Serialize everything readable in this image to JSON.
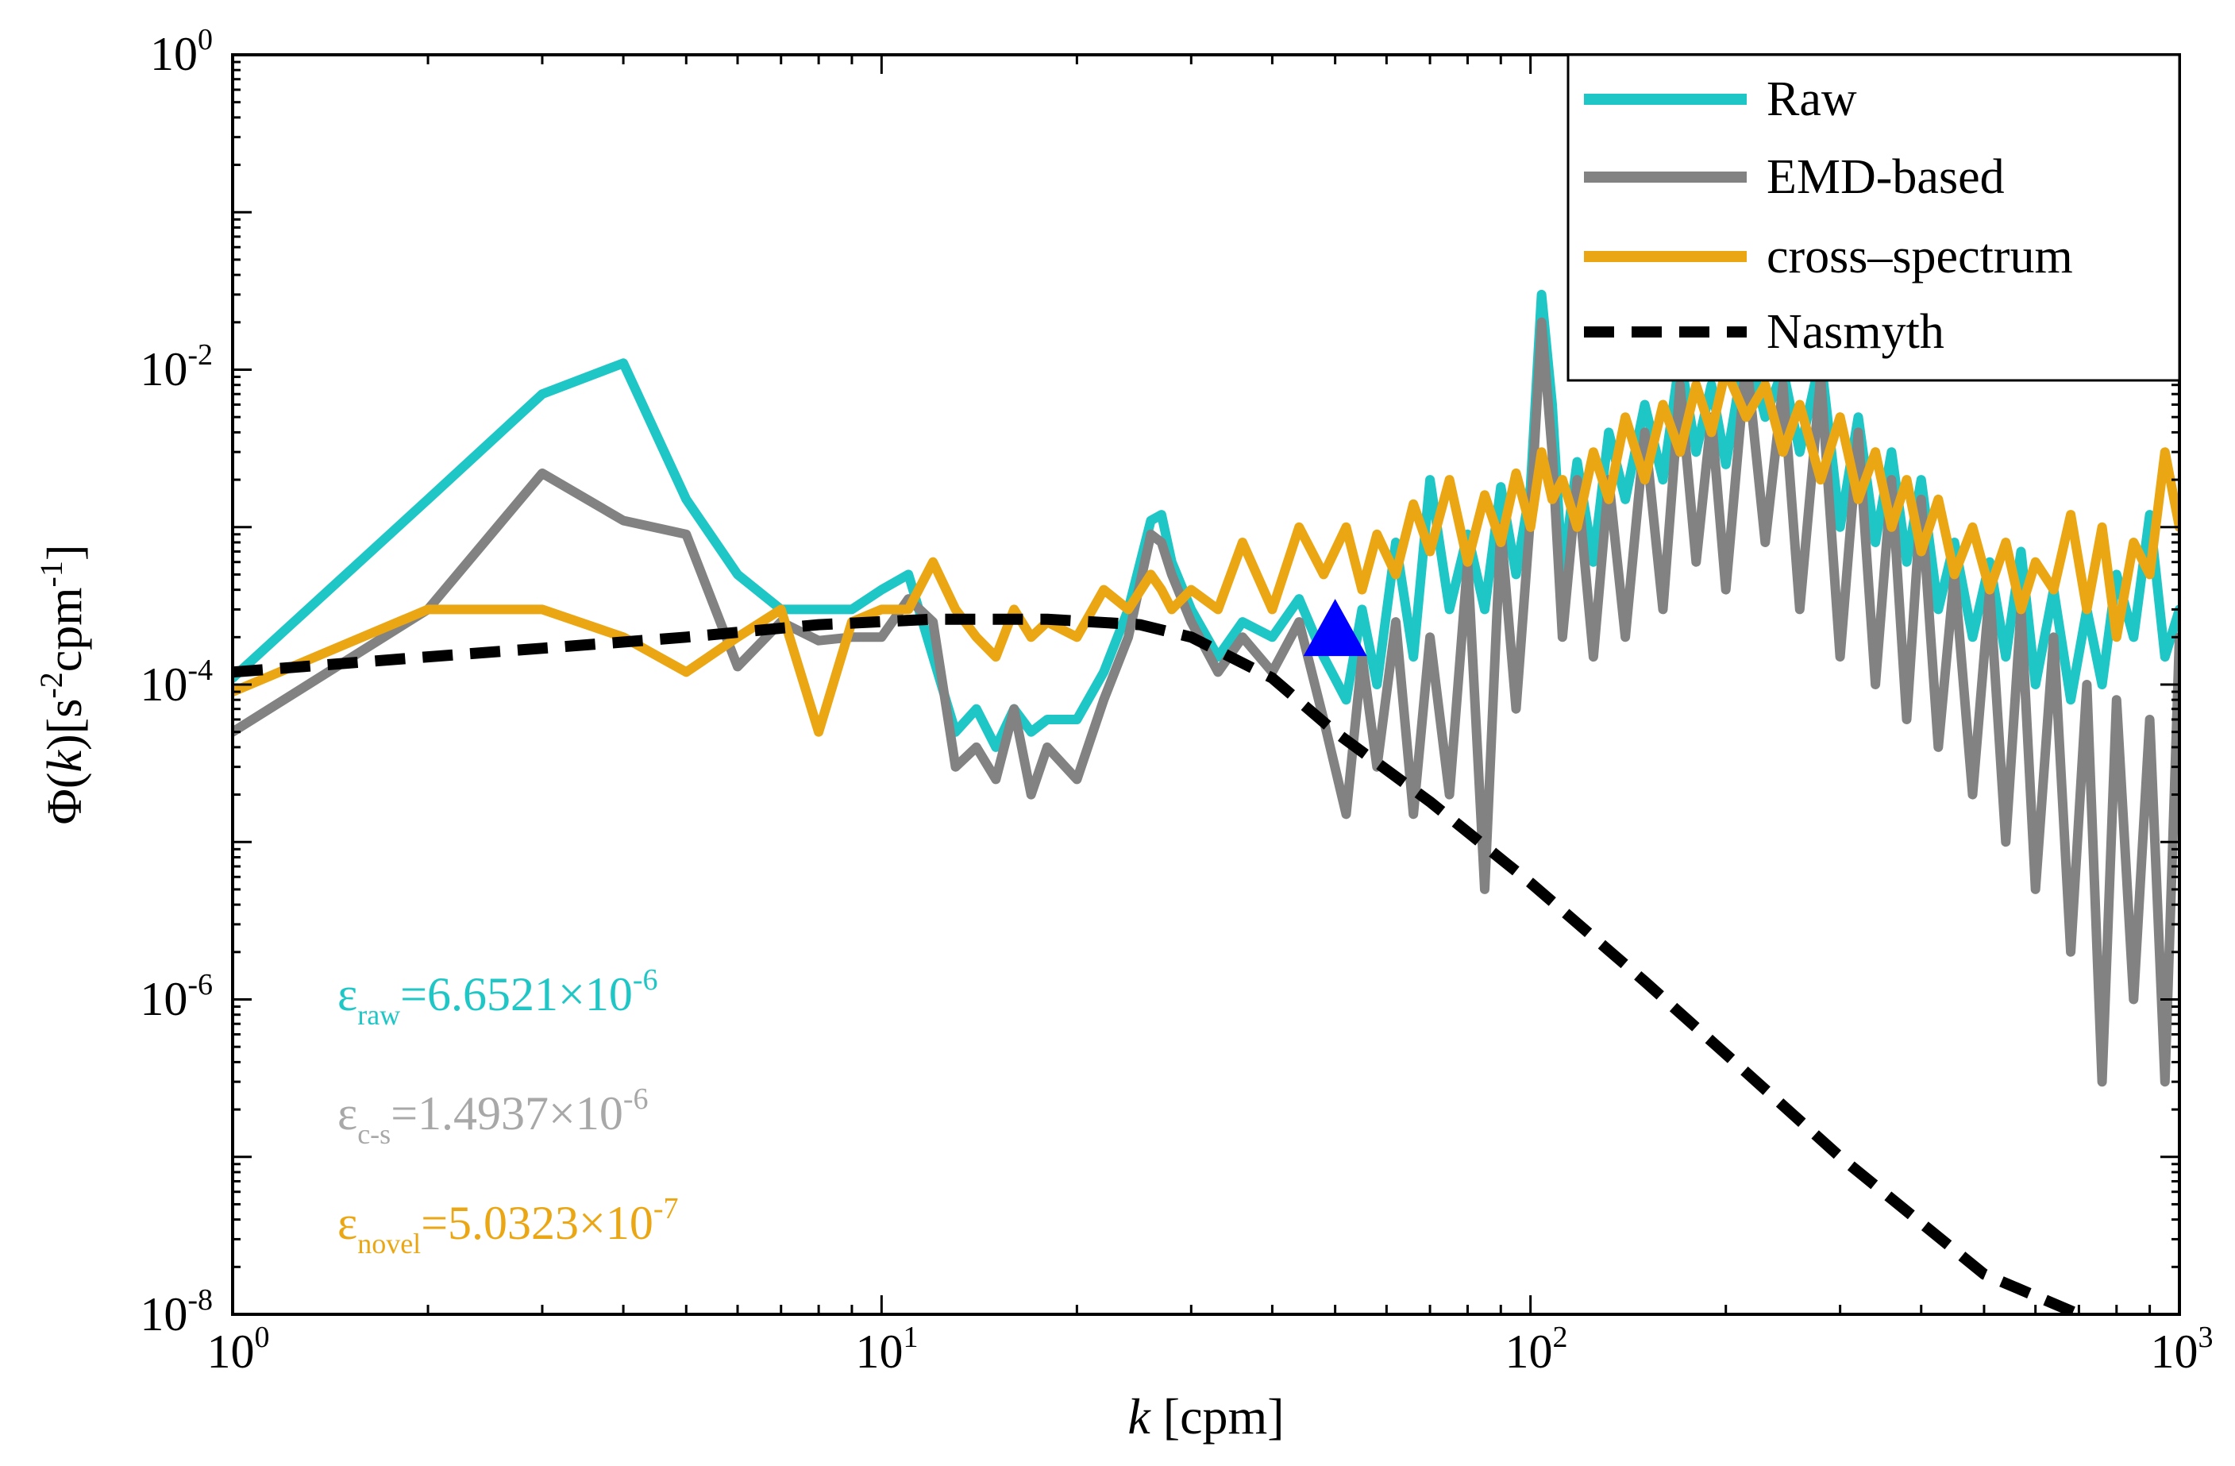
{
  "chart_data": {
    "type": "line",
    "xscale": "log",
    "yscale": "log",
    "xlim": [
      1,
      1000
    ],
    "ylim": [
      1e-08,
      1
    ],
    "grid": false,
    "legend_position": "top-right",
    "xlabel": {
      "var": "k",
      "rest": " [cpm]"
    },
    "ylabel": {
      "phi": "Φ(",
      "var": "k",
      "mid": ")[s",
      "sup1": "-2",
      "cpm": "cpm",
      "sup2": "-1",
      "end": "]"
    },
    "xticks": [
      {
        "value": 1,
        "base": "10",
        "exp": "0"
      },
      {
        "value": 10,
        "base": "10",
        "exp": "1"
      },
      {
        "value": 100,
        "base": "10",
        "exp": "2"
      },
      {
        "value": 1000,
        "base": "10",
        "exp": "3"
      }
    ],
    "yticks": [
      {
        "value": 1e-08,
        "base": "10",
        "exp": "-8"
      },
      {
        "value": 1e-06,
        "base": "10",
        "exp": "-6"
      },
      {
        "value": 0.0001,
        "base": "10",
        "exp": "-4"
      },
      {
        "value": 0.01,
        "base": "10",
        "exp": "-2"
      },
      {
        "value": 1,
        "base": "10",
        "exp": "0"
      }
    ],
    "series": [
      {
        "name": "Raw",
        "color": "#1fc6c6",
        "style": "solid",
        "x": [
          1,
          2,
          3,
          4,
          5,
          6,
          7,
          8,
          9,
          10,
          11,
          12,
          13,
          14,
          15,
          16,
          17,
          18,
          20,
          22,
          24,
          26,
          27,
          28,
          30,
          33,
          36,
          40,
          44,
          48,
          52,
          55,
          58,
          62,
          66,
          70,
          75,
          80,
          85,
          90,
          95,
          100,
          104,
          108,
          112,
          118,
          125,
          132,
          140,
          150,
          160,
          170,
          180,
          190,
          200,
          215,
          230,
          245,
          260,
          280,
          300,
          320,
          340,
          360,
          380,
          400,
          425,
          450,
          480,
          510,
          540,
          570,
          600,
          640,
          680,
          720,
          760,
          800,
          850,
          900,
          950,
          1000
        ],
        "y": [
          0.00011,
          0.0015,
          0.007,
          0.011,
          0.0015,
          0.0005,
          0.0003,
          0.0003,
          0.0003,
          0.0004,
          0.0005,
          0.00015,
          5e-05,
          7e-05,
          4e-05,
          7e-05,
          5e-05,
          6e-05,
          6e-05,
          0.00012,
          0.0003,
          0.0011,
          0.0012,
          0.0006,
          0.0003,
          0.00015,
          0.00025,
          0.0002,
          0.00035,
          0.00015,
          8e-05,
          0.0003,
          0.0001,
          0.0008,
          0.00015,
          0.002,
          0.0003,
          0.0009,
          0.0003,
          0.0018,
          0.0005,
          0.0018,
          0.03,
          0.006,
          0.0005,
          0.0026,
          0.0006,
          0.004,
          0.0015,
          0.006,
          0.002,
          0.012,
          0.003,
          0.008,
          0.0025,
          0.015,
          0.005,
          0.01,
          0.003,
          0.012,
          0.001,
          0.005,
          0.0008,
          0.003,
          0.0006,
          0.002,
          0.0003,
          0.0008,
          0.0002,
          0.0006,
          0.00015,
          0.0007,
          0.0001,
          0.0004,
          8e-05,
          0.0003,
          0.0001,
          0.0005,
          0.0002,
          0.0012,
          0.00015,
          0.0003
        ]
      },
      {
        "name": "EMD-based",
        "color": "#828282",
        "style": "solid",
        "x": [
          1,
          2,
          3,
          4,
          5,
          6,
          7,
          8,
          9,
          10,
          11,
          12,
          13,
          14,
          15,
          16,
          17,
          18,
          20,
          22,
          24,
          26,
          27,
          28,
          30,
          33,
          36,
          40,
          44,
          48,
          52,
          55,
          58,
          62,
          66,
          70,
          75,
          80,
          85,
          90,
          95,
          100,
          104,
          108,
          112,
          118,
          125,
          132,
          140,
          150,
          160,
          170,
          180,
          190,
          200,
          215,
          230,
          245,
          260,
          280,
          300,
          320,
          340,
          360,
          380,
          400,
          425,
          450,
          480,
          510,
          540,
          570,
          600,
          640,
          680,
          720,
          760,
          800,
          850,
          900,
          950,
          1000
        ],
        "y": [
          5e-05,
          0.0003,
          0.0022,
          0.0011,
          0.0009,
          0.00013,
          0.00025,
          0.00019,
          0.0002,
          0.0002,
          0.00035,
          0.00025,
          3e-05,
          4e-05,
          2.5e-05,
          7e-05,
          2e-05,
          4e-05,
          2.5e-05,
          8e-05,
          0.0002,
          0.0009,
          0.0008,
          0.0005,
          0.00025,
          0.00012,
          0.0002,
          0.00012,
          0.00025,
          6e-05,
          1.5e-05,
          0.00015,
          3e-05,
          0.00025,
          1.5e-05,
          0.0002,
          2e-05,
          0.0006,
          5e-06,
          0.001,
          7e-05,
          0.0012,
          0.02,
          0.003,
          0.0002,
          0.002,
          0.00015,
          0.002,
          0.0002,
          0.004,
          0.0003,
          0.008,
          0.0006,
          0.005,
          0.0004,
          0.012,
          0.0008,
          0.008,
          0.0003,
          0.009,
          0.00015,
          0.004,
          0.0001,
          0.002,
          6e-05,
          0.0015,
          4e-05,
          0.0005,
          2e-05,
          0.0004,
          1e-05,
          0.0003,
          5e-06,
          0.0002,
          2e-06,
          0.0001,
          3e-07,
          8e-05,
          1e-06,
          6e-05,
          3e-07,
          0.0002
        ]
      },
      {
        "name": "cross–spectrum",
        "color": "#eba613",
        "style": "solid",
        "x": [
          1,
          2,
          3,
          4,
          5,
          6,
          7,
          8,
          9,
          10,
          11,
          12,
          13,
          14,
          15,
          16,
          17,
          18,
          20,
          22,
          24,
          26,
          27,
          28,
          30,
          33,
          36,
          40,
          44,
          48,
          52,
          55,
          58,
          62,
          66,
          70,
          75,
          80,
          85,
          90,
          95,
          100,
          104,
          108,
          112,
          118,
          125,
          132,
          140,
          150,
          160,
          170,
          180,
          190,
          200,
          215,
          230,
          245,
          260,
          280,
          300,
          320,
          340,
          360,
          380,
          400,
          425,
          450,
          480,
          510,
          540,
          570,
          600,
          640,
          680,
          720,
          760,
          800,
          850,
          900,
          950,
          1000
        ],
        "y": [
          9e-05,
          0.0003,
          0.0003,
          0.0002,
          0.00012,
          0.0002,
          0.0003,
          5e-05,
          0.00025,
          0.0003,
          0.0003,
          0.0006,
          0.0003,
          0.0002,
          0.00015,
          0.0003,
          0.0002,
          0.00025,
          0.0002,
          0.0004,
          0.0003,
          0.0005,
          0.0004,
          0.0003,
          0.0004,
          0.0003,
          0.0008,
          0.0003,
          0.001,
          0.0005,
          0.001,
          0.0004,
          0.0009,
          0.0005,
          0.0014,
          0.0007,
          0.002,
          0.0006,
          0.0016,
          0.0008,
          0.0022,
          0.001,
          0.003,
          0.0015,
          0.002,
          0.001,
          0.003,
          0.0015,
          0.005,
          0.002,
          0.006,
          0.003,
          0.008,
          0.004,
          0.01,
          0.005,
          0.008,
          0.003,
          0.006,
          0.002,
          0.005,
          0.0015,
          0.003,
          0.001,
          0.002,
          0.0007,
          0.0015,
          0.0005,
          0.001,
          0.0004,
          0.0008,
          0.0003,
          0.0006,
          0.0004,
          0.0012,
          0.0003,
          0.001,
          0.0002,
          0.0008,
          0.0005,
          0.003,
          0.001
        ]
      },
      {
        "name": "Nasmyth",
        "color": "#000000",
        "style": "dashed",
        "x": [
          1,
          2,
          3,
          5,
          8,
          12,
          18,
          25,
          30,
          40,
          50,
          70,
          100,
          150,
          200,
          300,
          500,
          700,
          1000
        ],
        "y": [
          0.00012,
          0.00015,
          0.00017,
          0.0002,
          0.00024,
          0.00026,
          0.00026,
          0.00024,
          0.0002,
          0.00011,
          5e-05,
          1.8e-05,
          5.5e-06,
          1.3e-06,
          4.5e-07,
          1e-07,
          1.8e-08,
          1e-08,
          5e-09
        ]
      }
    ],
    "marker": {
      "shape": "triangle",
      "color": "#0000ff",
      "x": 50,
      "y": 0.00022
    },
    "annotations": [
      {
        "eps": "ε",
        "sub": "raw",
        "eq": "=6.6521×10",
        "exp": "-6",
        "color": "#1fc6c6"
      },
      {
        "eps": "ε",
        "sub": "c-s",
        "eq": "=1.4937×10",
        "exp": "-6",
        "color": "#a8a8a8"
      },
      {
        "eps": "ε",
        "sub": "novel",
        "eq": "=5.0323×10",
        "exp": "-7",
        "color": "#eba613"
      }
    ]
  }
}
